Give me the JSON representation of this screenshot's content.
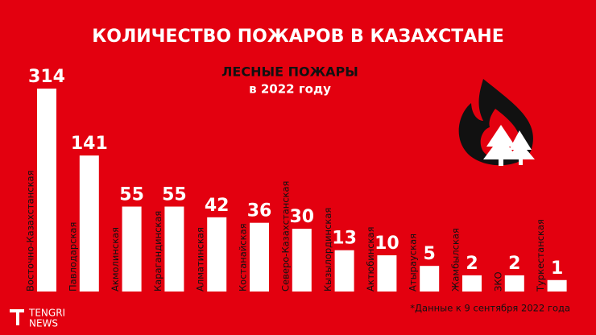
{
  "chart_data": {
    "type": "bar",
    "title": "КОЛИЧЕСТВО ПОЖАРОВ В КАЗАХСТАНЕ",
    "subtitle": "ЛЕСНЫЕ ПОЖАРЫ",
    "subtitle2": "в 2022 году",
    "categories": [
      "Восточно-Казахстанская",
      "Павлодарская",
      "Акмолинская",
      "Карагандинская",
      "Алматинская",
      "Костанайская",
      "Северо-Казахстанская",
      "Кызылординская",
      "Актюбинская",
      "Атырауская",
      "Жамбылская",
      "ЗКО",
      "Туркестанская"
    ],
    "values": [
      314,
      141,
      55,
      55,
      42,
      36,
      30,
      13,
      10,
      5,
      2,
      2,
      1
    ],
    "color": "#ffffff",
    "scale": "sqrt",
    "ylim": [
      0,
      314
    ]
  },
  "footnote": "*Данные к 9 сентября 2022 года",
  "logo": {
    "line1": "TENGRI",
    "line2": "NEWS"
  }
}
